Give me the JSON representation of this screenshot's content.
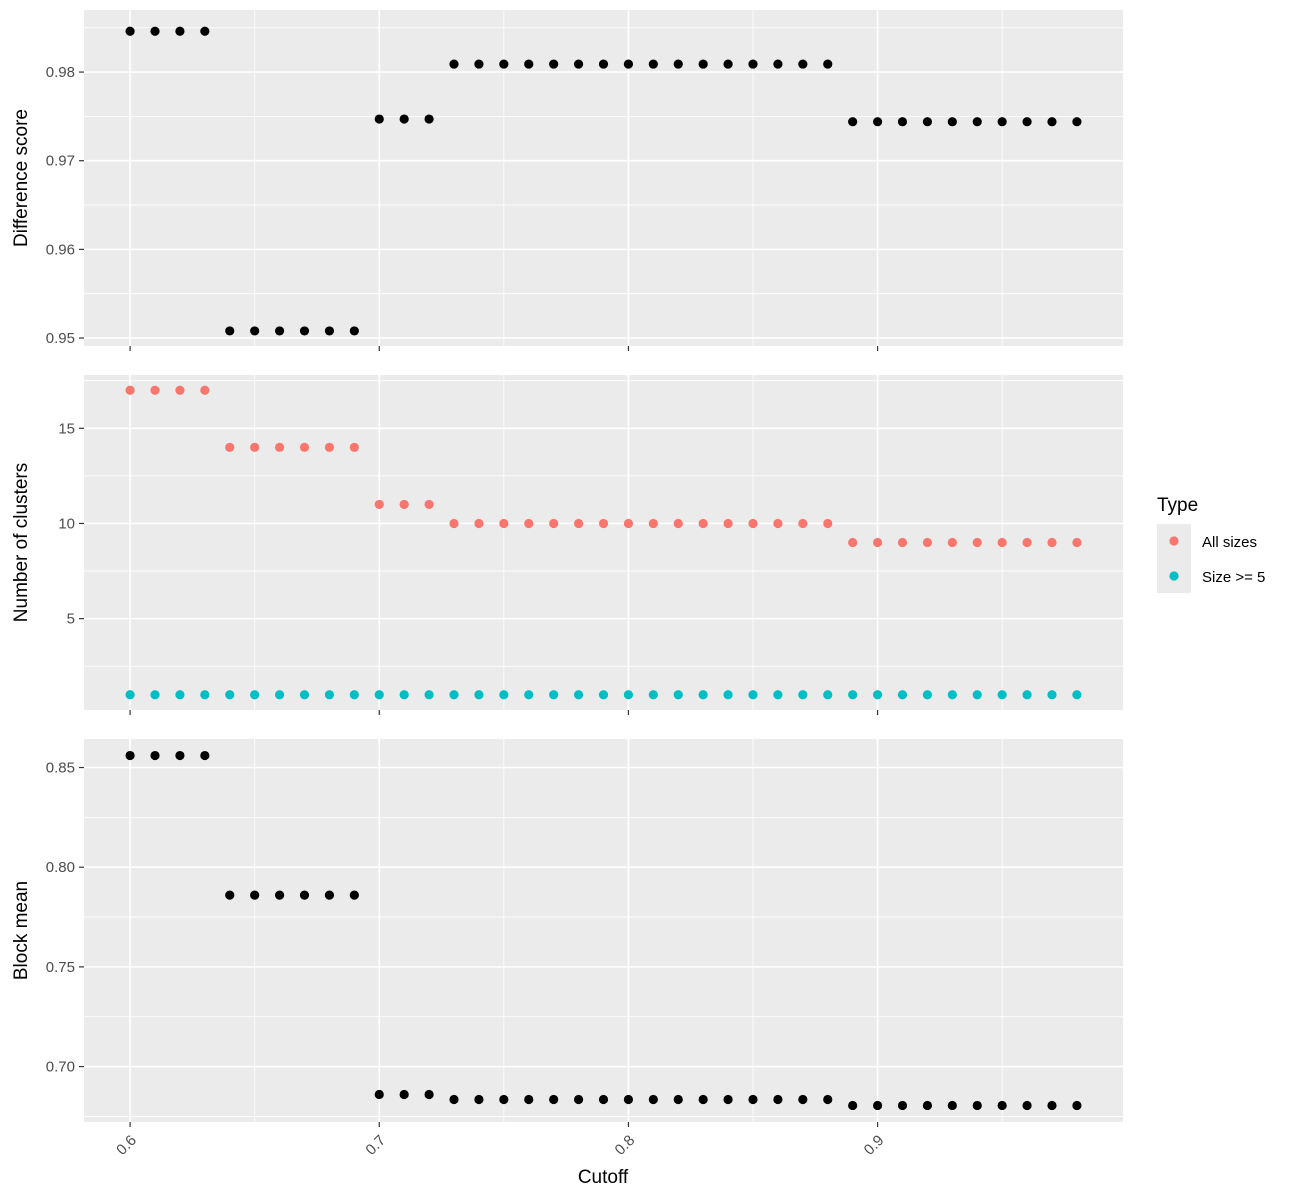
{
  "chart_data": [
    {
      "type": "scatter",
      "ylabel": "Difference score",
      "xlim": [
        0.5815,
        0.9985
      ],
      "ylim": [
        0.9491,
        0.987
      ],
      "y_major": [
        0.95,
        0.96,
        0.97,
        0.98
      ],
      "y_tick_labels": [
        "0.95",
        "0.96",
        "0.97",
        "0.98"
      ],
      "series": [
        {
          "color": "#000000",
          "x": [
            0.6,
            0.61,
            0.62,
            0.63,
            0.64,
            0.65,
            0.66,
            0.67,
            0.68,
            0.69,
            0.7,
            0.71,
            0.72,
            0.73,
            0.74,
            0.75,
            0.76,
            0.77,
            0.78,
            0.79,
            0.8,
            0.81,
            0.82,
            0.83,
            0.84,
            0.85,
            0.86,
            0.87,
            0.88,
            0.89,
            0.9,
            0.91,
            0.92,
            0.93,
            0.94,
            0.95,
            0.96,
            0.97,
            0.98
          ],
          "y": [
            0.9846,
            0.9846,
            0.9846,
            0.9846,
            0.9508,
            0.9508,
            0.9508,
            0.9508,
            0.9508,
            0.9508,
            0.9747,
            0.9747,
            0.9747,
            0.9809,
            0.9809,
            0.9809,
            0.9809,
            0.9809,
            0.9809,
            0.9809,
            0.9809,
            0.9809,
            0.9809,
            0.9809,
            0.9809,
            0.9809,
            0.9809,
            0.9809,
            0.9809,
            0.9744,
            0.9744,
            0.9744,
            0.9744,
            0.9744,
            0.9744,
            0.9744,
            0.9744,
            0.9744,
            0.9744
          ]
        }
      ]
    },
    {
      "type": "scatter",
      "ylabel": "Number of clusters",
      "xlim": [
        0.5815,
        0.9985
      ],
      "ylim": [
        0.2,
        17.8
      ],
      "y_major": [
        5,
        10,
        15
      ],
      "y_tick_labels": [
        "5",
        "10",
        "15"
      ],
      "legend": {
        "title": "Type",
        "position": "right"
      },
      "series": [
        {
          "name": "All sizes",
          "color": "#F8766D",
          "x": [
            0.6,
            0.61,
            0.62,
            0.63,
            0.64,
            0.65,
            0.66,
            0.67,
            0.68,
            0.69,
            0.7,
            0.71,
            0.72,
            0.73,
            0.74,
            0.75,
            0.76,
            0.77,
            0.78,
            0.79,
            0.8,
            0.81,
            0.82,
            0.83,
            0.84,
            0.85,
            0.86,
            0.87,
            0.88,
            0.89,
            0.9,
            0.91,
            0.92,
            0.93,
            0.94,
            0.95,
            0.96,
            0.97,
            0.98
          ],
          "y": [
            17,
            17,
            17,
            17,
            14,
            14,
            14,
            14,
            14,
            14,
            11,
            11,
            11,
            10,
            10,
            10,
            10,
            10,
            10,
            10,
            10,
            10,
            10,
            10,
            10,
            10,
            10,
            10,
            10,
            9,
            9,
            9,
            9,
            9,
            9,
            9,
            9,
            9,
            9
          ]
        },
        {
          "name": "Size >= 5",
          "color": "#00BFC4",
          "x": [
            0.6,
            0.61,
            0.62,
            0.63,
            0.64,
            0.65,
            0.66,
            0.67,
            0.68,
            0.69,
            0.7,
            0.71,
            0.72,
            0.73,
            0.74,
            0.75,
            0.76,
            0.77,
            0.78,
            0.79,
            0.8,
            0.81,
            0.82,
            0.83,
            0.84,
            0.85,
            0.86,
            0.87,
            0.88,
            0.89,
            0.9,
            0.91,
            0.92,
            0.93,
            0.94,
            0.95,
            0.96,
            0.97,
            0.98
          ],
          "y": [
            1,
            1,
            1,
            1,
            1,
            1,
            1,
            1,
            1,
            1,
            1,
            1,
            1,
            1,
            1,
            1,
            1,
            1,
            1,
            1,
            1,
            1,
            1,
            1,
            1,
            1,
            1,
            1,
            1,
            1,
            1,
            1,
            1,
            1,
            1,
            1,
            1,
            1,
            1
          ]
        }
      ]
    },
    {
      "type": "scatter",
      "ylabel": "Block mean",
      "xlabel": "Cutoff",
      "xlim": [
        0.5815,
        0.9985
      ],
      "ylim": [
        0.6722,
        0.8643
      ],
      "x_major": [
        0.6,
        0.7,
        0.8,
        0.9
      ],
      "x_tick_labels": [
        "0.6",
        "0.7",
        "0.8",
        "0.9"
      ],
      "y_major": [
        0.7,
        0.75,
        0.8,
        0.85
      ],
      "y_tick_labels": [
        "0.70",
        "0.75",
        "0.80",
        "0.85"
      ],
      "series": [
        {
          "color": "#000000",
          "x": [
            0.6,
            0.61,
            0.62,
            0.63,
            0.64,
            0.65,
            0.66,
            0.67,
            0.68,
            0.69,
            0.7,
            0.71,
            0.72,
            0.73,
            0.74,
            0.75,
            0.76,
            0.77,
            0.78,
            0.79,
            0.8,
            0.81,
            0.82,
            0.83,
            0.84,
            0.85,
            0.86,
            0.87,
            0.88,
            0.89,
            0.9,
            0.91,
            0.92,
            0.93,
            0.94,
            0.95,
            0.96,
            0.97,
            0.98
          ],
          "y": [
            0.856,
            0.856,
            0.856,
            0.856,
            0.786,
            0.786,
            0.786,
            0.786,
            0.786,
            0.786,
            0.686,
            0.686,
            0.686,
            0.6835,
            0.6835,
            0.6835,
            0.6835,
            0.6835,
            0.6835,
            0.6835,
            0.6835,
            0.6835,
            0.6835,
            0.6835,
            0.6835,
            0.6835,
            0.6835,
            0.6835,
            0.6835,
            0.6805,
            0.6805,
            0.6805,
            0.6805,
            0.6805,
            0.6805,
            0.6805,
            0.6805,
            0.6805,
            0.6805
          ]
        }
      ]
    }
  ]
}
